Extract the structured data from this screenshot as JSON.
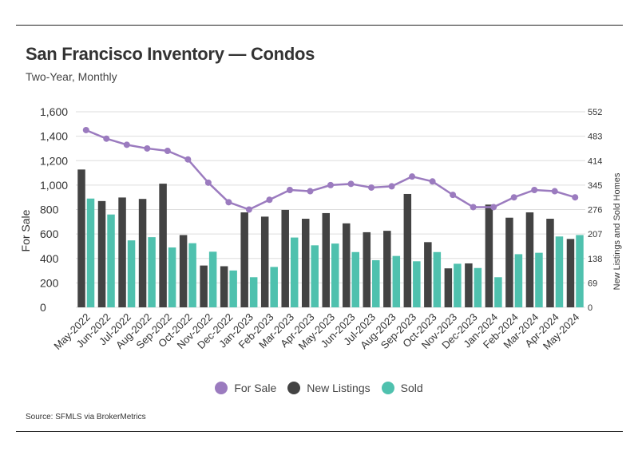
{
  "header": {
    "title": "San Francisco Inventory — Condos",
    "subtitle": "Two-Year, Monthly"
  },
  "source": "Source:  SFMLS via BrokerMetrics",
  "colors": {
    "for_sale": "#9b7bbf",
    "new_listings": "#434343",
    "sold": "#4fc1ae",
    "gridline": "#dddddd"
  },
  "chart_data": {
    "type": "bar",
    "title": "San Francisco Inventory — Condos",
    "subtitle": "Two-Year, Monthly",
    "categories": [
      "May-2022",
      "Jun-2022",
      "Jul-2022",
      "Aug-2022",
      "Sep-2022",
      "Oct-2022",
      "Nov-2022",
      "Dec-2022",
      "Jan-2023",
      "Feb-2023",
      "Mar-2023",
      "Apr-2023",
      "May-2023",
      "Jun-2023",
      "Jul-2023",
      "Aug-2023",
      "Sep-2023",
      "Oct-2023",
      "Nov-2023",
      "Dec-2023",
      "Jan-2024",
      "Feb-2024",
      "Mar-2024",
      "Apr-2024",
      "May-2024"
    ],
    "ylabel": "For Sale",
    "ylabel_right": "New Listings and Sold Homes",
    "ylim": [
      0,
      1600
    ],
    "yticks": [
      "0",
      "200",
      "400",
      "600",
      "800",
      "1,000",
      "1,200",
      "1,400",
      "1,600"
    ],
    "ylim_right": [
      0,
      552
    ],
    "yticks_right": [
      "0",
      "69",
      "138",
      "207",
      "276",
      "345",
      "414",
      "483",
      "552"
    ],
    "grid": true,
    "legend": "bottom-center",
    "series": [
      {
        "name": "For Sale",
        "type": "line",
        "axis": "left",
        "values": [
          1450,
          1380,
          1330,
          1300,
          1280,
          1210,
          1020,
          860,
          800,
          880,
          960,
          950,
          1000,
          1010,
          980,
          990,
          1070,
          1030,
          920,
          820,
          820,
          900,
          960,
          950,
          900
        ]
      },
      {
        "name": "New Listings",
        "type": "bar",
        "axis": "right",
        "values": [
          389,
          300,
          310,
          306,
          349,
          204,
          118,
          116,
          268,
          256,
          275,
          250,
          266,
          237,
          212,
          216,
          320,
          184,
          110,
          124,
          290,
          253,
          268,
          250,
          193
        ]
      },
      {
        "name": "Sold",
        "type": "bar",
        "axis": "right",
        "values": [
          307,
          262,
          189,
          198,
          169,
          181,
          157,
          104,
          85,
          114,
          197,
          175,
          180,
          156,
          133,
          145,
          130,
          156,
          123,
          111,
          85,
          150,
          154,
          200,
          204
        ]
      }
    ]
  }
}
